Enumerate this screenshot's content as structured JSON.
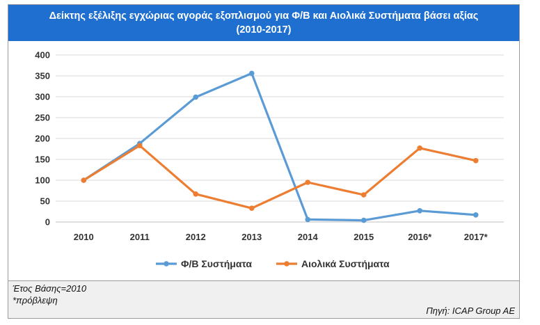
{
  "title_lines": [
    "Δείκτης εξέλιξης εγχώριας αγοράς εξοπλισμού για Φ/Β και Αιολικά Συστήματα βάσει αξίας",
    "(2010-2017)"
  ],
  "chart_data": {
    "type": "line",
    "title": "Δείκτης εξέλιξης εγχώριας αγοράς εξοπλισμού για Φ/Β και Αιολικά Συστήματα βάσει αξίας (2010-2017)",
    "xlabel": "",
    "ylabel": "",
    "categories": [
      "2010",
      "2011",
      "2012",
      "2013",
      "2014",
      "2015",
      "2016*",
      "2017*"
    ],
    "ylim": [
      0,
      400
    ],
    "yticks": [
      0,
      50,
      100,
      150,
      200,
      250,
      300,
      350,
      400
    ],
    "grid": true,
    "legend_position": "bottom",
    "series": [
      {
        "name": "Φ/Β Συστήματα",
        "color": "#5b9bd5",
        "values": [
          100,
          188,
          299,
          356,
          6,
          4,
          27,
          17
        ]
      },
      {
        "name": "Αιολικά Συστήματα",
        "color": "#ed7d31",
        "values": [
          100,
          183,
          67,
          33,
          95,
          65,
          177,
          147
        ]
      }
    ]
  },
  "footer": {
    "note_base": "Έτος Βάσης=2010",
    "note_forecast": "*πρόβλεψη",
    "source": "Πηγή: ICAP Group AE"
  }
}
